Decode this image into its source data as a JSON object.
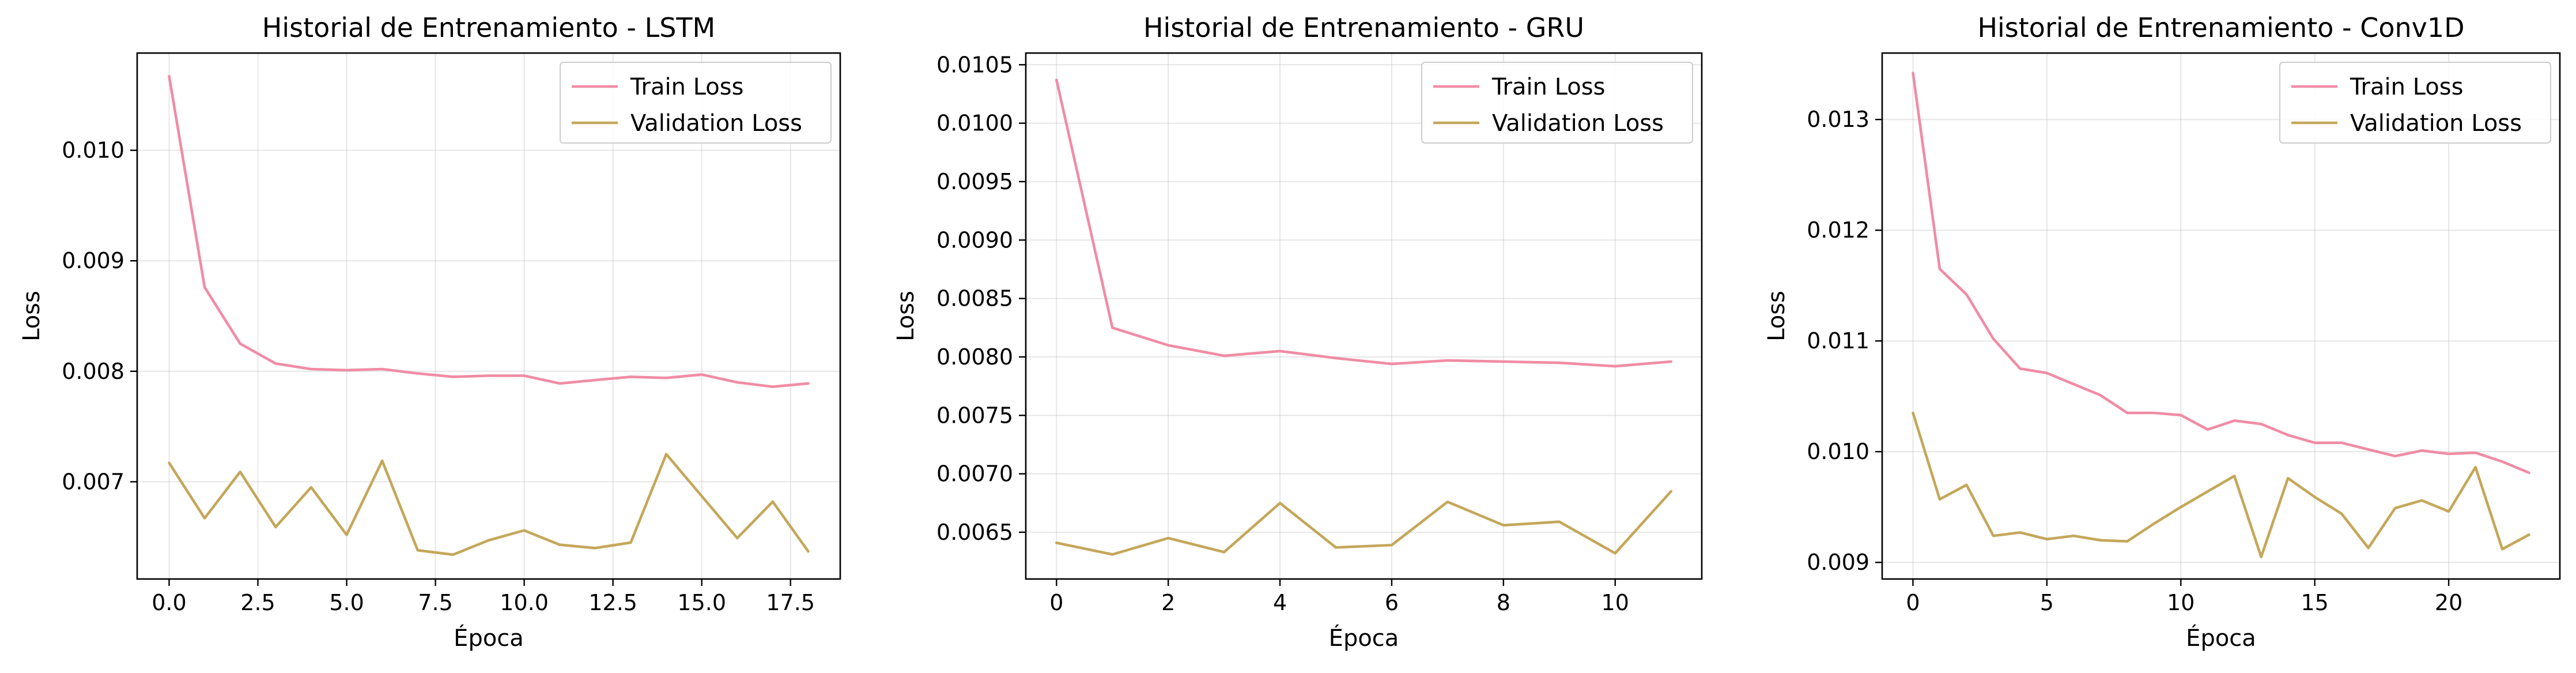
{
  "chart_data": [
    {
      "type": "line",
      "title": "Historial de Entrenamiento - LSTM",
      "xlabel": "Época",
      "ylabel": "Loss",
      "xlim": [
        -0.9,
        18.9
      ],
      "ylim": [
        0.00612,
        0.01088
      ],
      "xticks": [
        0,
        2.5,
        5,
        7.5,
        10,
        12.5,
        15,
        17.5
      ],
      "xtick_labels": [
        "0.0",
        "2.5",
        "5.0",
        "7.5",
        "10.0",
        "12.5",
        "15.0",
        "17.5"
      ],
      "yticks": [
        0.007,
        0.008,
        0.009,
        0.01
      ],
      "ytick_labels": [
        "0.007",
        "0.008",
        "0.009",
        "0.010"
      ],
      "grid": true,
      "legend": "top-right",
      "x": [
        0,
        1,
        2,
        3,
        4,
        5,
        6,
        7,
        8,
        9,
        10,
        11,
        12,
        13,
        14,
        15,
        16,
        17,
        18
      ],
      "series": [
        {
          "name": "Train Loss",
          "color": "#f08ca5",
          "values": [
            0.01067,
            0.00876,
            0.00825,
            0.00807,
            0.00802,
            0.00801,
            0.00802,
            0.00798,
            0.00795,
            0.00796,
            0.00796,
            0.00789,
            0.00792,
            0.00795,
            0.00794,
            0.00797,
            0.0079,
            0.00786,
            0.00789
          ]
        },
        {
          "name": "Validation Loss",
          "color": "#c4a75a",
          "values": [
            0.00717,
            0.00667,
            0.00709,
            0.00659,
            0.00695,
            0.00652,
            0.00719,
            0.00638,
            0.00634,
            0.00647,
            0.00656,
            0.00643,
            0.0064,
            0.00645,
            0.00725,
            0.00687,
            0.00649,
            0.00682,
            0.00637
          ]
        }
      ]
    },
    {
      "type": "line",
      "title": "Historial de Entrenamiento - GRU",
      "xlabel": "Época",
      "ylabel": "Loss",
      "xlim": [
        -0.55,
        11.55
      ],
      "ylim": [
        0.0061,
        0.0106
      ],
      "xticks": [
        0,
        2,
        4,
        6,
        8,
        10
      ],
      "xtick_labels": [
        "0",
        "2",
        "4",
        "6",
        "8",
        "10"
      ],
      "yticks": [
        0.0065,
        0.007,
        0.0075,
        0.008,
        0.0085,
        0.009,
        0.0095,
        0.01,
        0.0105
      ],
      "ytick_labels": [
        "0.0065",
        "0.0070",
        "0.0075",
        "0.0080",
        "0.0085",
        "0.0090",
        "0.0095",
        "0.0100",
        "0.0105"
      ],
      "grid": true,
      "legend": "top-right",
      "x": [
        0,
        1,
        2,
        3,
        4,
        5,
        6,
        7,
        8,
        9,
        10,
        11
      ],
      "series": [
        {
          "name": "Train Loss",
          "color": "#f08ca5",
          "values": [
            0.01037,
            0.00825,
            0.0081,
            0.00801,
            0.00805,
            0.00799,
            0.00794,
            0.00797,
            0.00796,
            0.00795,
            0.00792,
            0.00796
          ]
        },
        {
          "name": "Validation Loss",
          "color": "#c4a75a",
          "values": [
            0.00641,
            0.00631,
            0.00645,
            0.00633,
            0.00675,
            0.00637,
            0.00639,
            0.00676,
            0.00656,
            0.00659,
            0.00632,
            0.00685
          ]
        }
      ]
    },
    {
      "type": "line",
      "title": "Historial de Entrenamiento - Conv1D",
      "xlabel": "Época",
      "ylabel": "Loss",
      "xlim": [
        -1.15,
        24.15
      ],
      "ylim": [
        0.00885,
        0.0136
      ],
      "xticks": [
        0,
        5,
        10,
        15,
        20
      ],
      "xtick_labels": [
        "0",
        "5",
        "10",
        "15",
        "20"
      ],
      "yticks": [
        0.009,
        0.01,
        0.011,
        0.012,
        0.013
      ],
      "ytick_labels": [
        "0.009",
        "0.010",
        "0.011",
        "0.012",
        "0.013"
      ],
      "grid": true,
      "legend": "top-right",
      "x": [
        0,
        1,
        2,
        3,
        4,
        5,
        6,
        7,
        8,
        9,
        10,
        11,
        12,
        13,
        14,
        15,
        16,
        17,
        18,
        19,
        20,
        21,
        22,
        23
      ],
      "series": [
        {
          "name": "Train Loss",
          "color": "#f08ca5",
          "values": [
            0.01342,
            0.01165,
            0.01142,
            0.01102,
            0.01075,
            0.01071,
            0.01061,
            0.01051,
            0.01035,
            0.01035,
            0.01033,
            0.0102,
            0.01028,
            0.01025,
            0.01015,
            0.01008,
            0.01008,
            0.01002,
            0.00996,
            0.01001,
            0.00998,
            0.00999,
            0.00991,
            0.00981
          ]
        },
        {
          "name": "Validation Loss",
          "color": "#c4a75a",
          "values": [
            0.01035,
            0.00957,
            0.0097,
            0.00924,
            0.00927,
            0.00921,
            0.00924,
            0.0092,
            0.00919,
            0.00935,
            0.0095,
            0.00964,
            0.00978,
            0.00905,
            0.00976,
            0.00959,
            0.00944,
            0.00913,
            0.00949,
            0.00956,
            0.00946,
            0.00986,
            0.00912,
            0.00925
          ]
        }
      ]
    }
  ]
}
